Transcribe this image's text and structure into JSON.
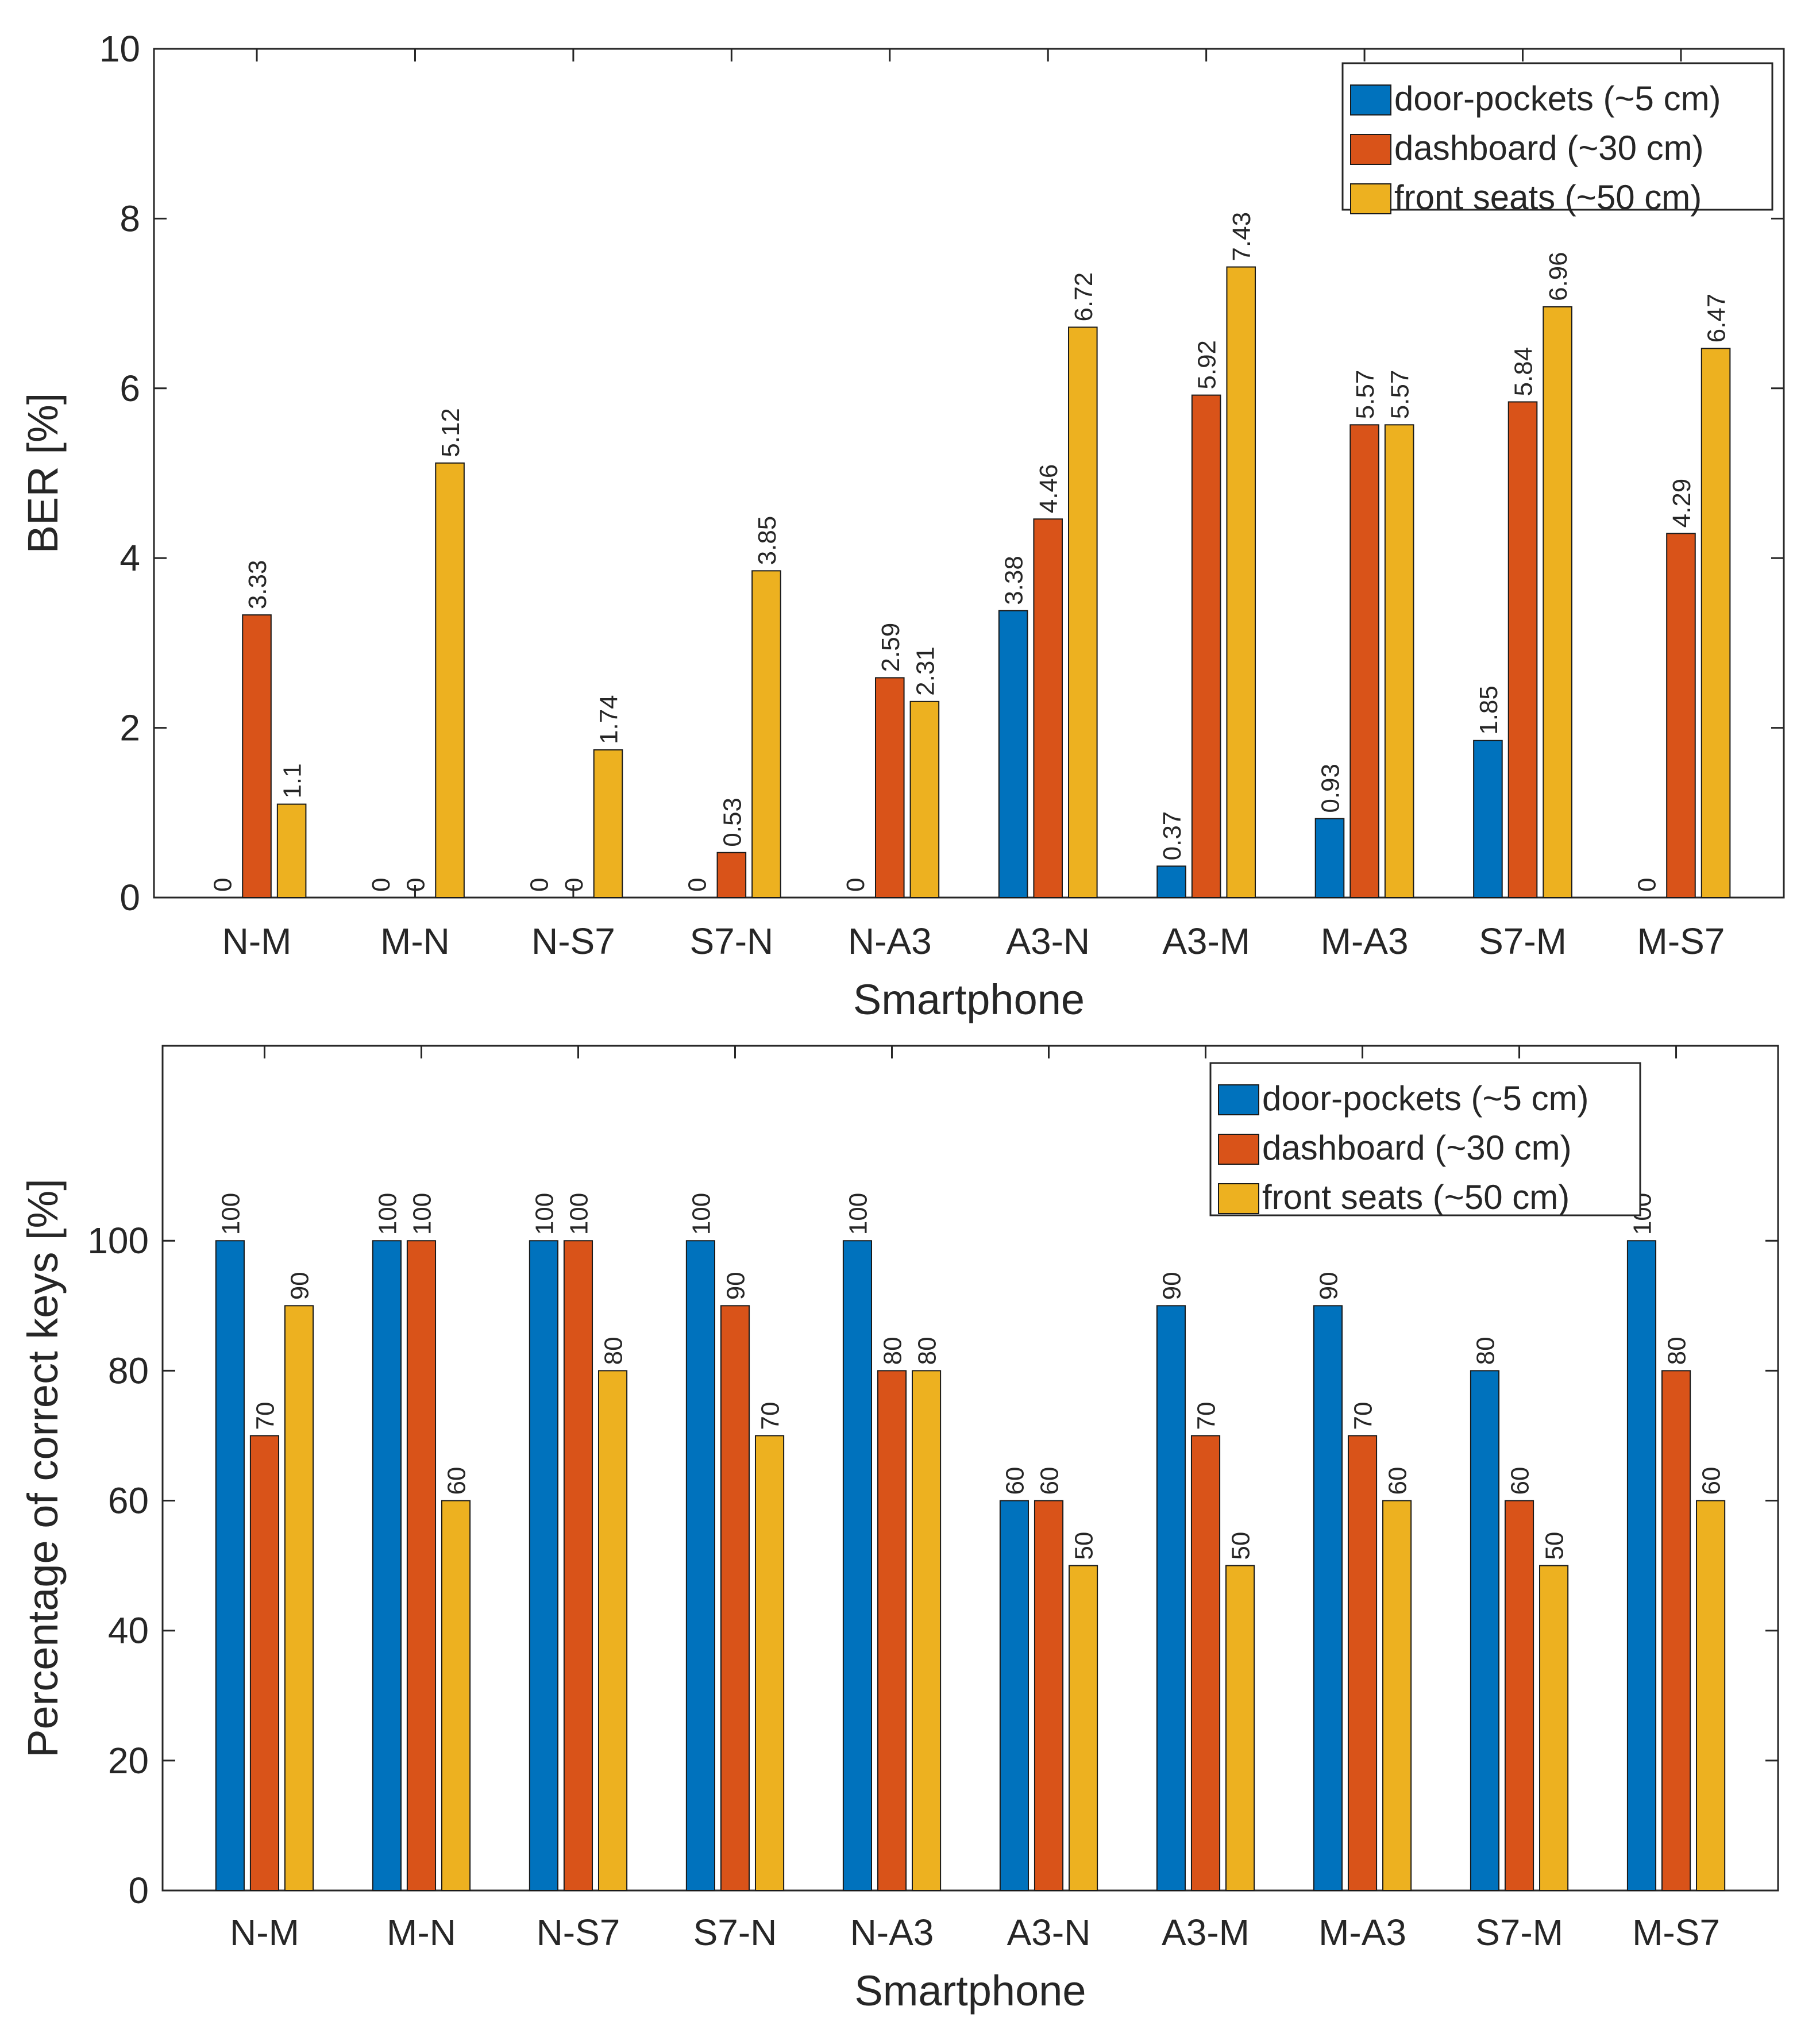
{
  "chart_data": [
    {
      "type": "bar",
      "title": "",
      "xlabel": "Smartphone",
      "ylabel": "BER [%]",
      "ylim": [
        0,
        10
      ],
      "yticks": [
        0,
        2,
        4,
        6,
        8,
        10
      ],
      "categories": [
        "N-M",
        "M-N",
        "N-S7",
        "S7-N",
        "N-A3",
        "A3-N",
        "A3-M",
        "M-A3",
        "S7-M",
        "M-S7"
      ],
      "series": [
        {
          "name": "door-pockets (~5 cm)",
          "color": "#0072BD",
          "values": [
            0,
            0,
            0,
            0,
            0,
            3.38,
            0.37,
            0.93,
            1.85,
            0
          ],
          "labels": [
            "0",
            "0",
            "0",
            "0",
            "0",
            "3.38",
            "0.37",
            "0.93",
            "1.85",
            "0"
          ]
        },
        {
          "name": "dashboard (~30 cm)",
          "color": "#D95319",
          "values": [
            3.33,
            0,
            0,
            0.53,
            2.59,
            4.46,
            5.92,
            5.57,
            5.84,
            4.29
          ],
          "labels": [
            "3.33",
            "0",
            "0",
            "0.53",
            "2.59",
            "4.46",
            "5.92",
            "5.57",
            "5.84",
            "4.29"
          ]
        },
        {
          "name": "front seats (~50 cm)",
          "color": "#EDB120",
          "values": [
            1.1,
            5.12,
            1.74,
            3.85,
            2.31,
            6.72,
            7.43,
            5.57,
            6.96,
            6.47
          ],
          "labels": [
            "1.1",
            "5.12",
            "1.74",
            "3.85",
            "2.31",
            "6.72",
            "7.43",
            "5.57",
            "6.96",
            "6.47"
          ]
        }
      ],
      "legend": "top-right",
      "grid": false
    },
    {
      "type": "bar",
      "title": "",
      "xlabel": "Smartphone",
      "ylabel": "Percentage of correct keys [%]",
      "ylim": [
        0,
        130
      ],
      "yticks": [
        0,
        20,
        40,
        60,
        80,
        100
      ],
      "categories": [
        "N-M",
        "M-N",
        "N-S7",
        "S7-N",
        "N-A3",
        "A3-N",
        "A3-M",
        "M-A3",
        "S7-M",
        "M-S7"
      ],
      "series": [
        {
          "name": "door-pockets (~5 cm)",
          "color": "#0072BD",
          "values": [
            100,
            100,
            100,
            100,
            100,
            60,
            90,
            90,
            80,
            100
          ],
          "labels": [
            "100",
            "100",
            "100",
            "100",
            "100",
            "60",
            "90",
            "90",
            "80",
            "100"
          ]
        },
        {
          "name": "dashboard (~30 cm)",
          "color": "#D95319",
          "values": [
            70,
            100,
            100,
            90,
            80,
            60,
            70,
            70,
            60,
            80
          ],
          "labels": [
            "70",
            "100",
            "100",
            "90",
            "80",
            "60",
            "70",
            "70",
            "60",
            "80"
          ]
        },
        {
          "name": "front seats (~50 cm)",
          "color": "#EDB120",
          "values": [
            90,
            60,
            80,
            70,
            80,
            50,
            50,
            60,
            50,
            60
          ],
          "labels": [
            "90",
            "60",
            "80",
            "70",
            "80",
            "50",
            "50",
            "60",
            "50",
            "60"
          ]
        }
      ],
      "legend": "top-right",
      "grid": false
    }
  ]
}
